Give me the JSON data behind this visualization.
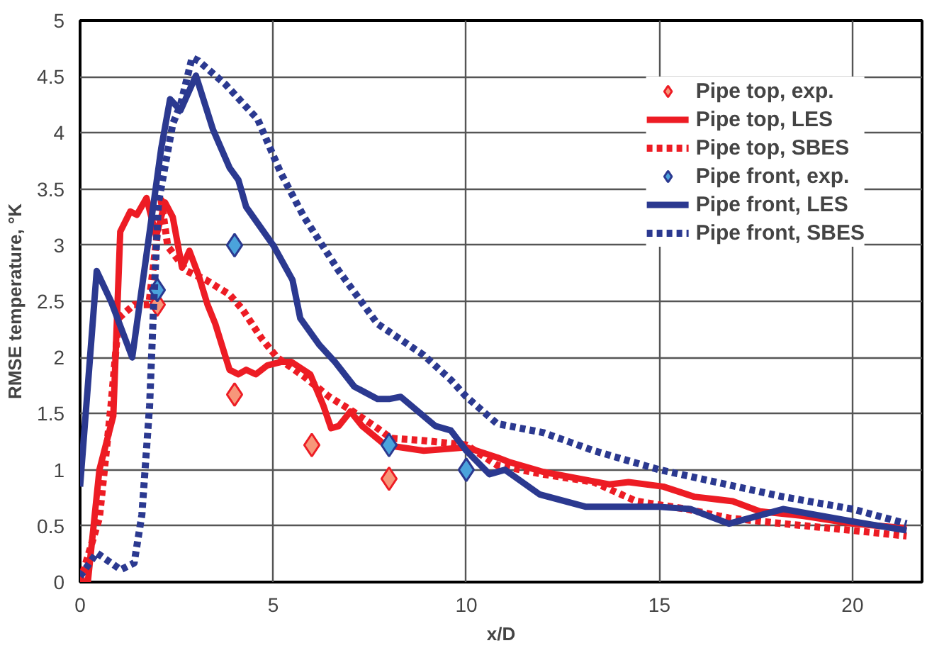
{
  "chart_data": {
    "type": "line",
    "xlabel": "x/D",
    "ylabel": "RMSE temperature, °K",
    "xlim": [
      0,
      21.8
    ],
    "ylim": [
      0,
      5
    ],
    "xticks": [
      0,
      5,
      10,
      15,
      20
    ],
    "yticks": [
      0,
      0.5,
      1,
      1.5,
      2,
      2.5,
      3,
      3.5,
      4,
      4.5,
      5
    ],
    "grid": true,
    "legend": "top right",
    "series": [
      {
        "name": "Pipe top, exp.",
        "type": "scatter",
        "marker": "diamond",
        "color": "#f7977a",
        "x": [
          2,
          4,
          6,
          8
        ],
        "values": [
          2.47,
          1.67,
          1.22,
          0.92
        ]
      },
      {
        "name": "Pipe top, LES",
        "line_style": "solid",
        "color": "#ed1c24",
        "x": [
          0,
          0.2,
          0.5,
          0.86,
          1.04,
          1.3,
          1.47,
          1.72,
          1.97,
          2.2,
          2.4,
          2.64,
          2.83,
          3.07,
          3.3,
          3.5,
          3.87,
          4.1,
          4.3,
          4.55,
          4.85,
          5.2,
          5.47,
          5.96,
          6.3,
          6.5,
          6.7,
          7.0,
          7.3,
          7.9,
          8.9,
          10,
          10.8,
          11.1,
          12,
          13.7,
          14.2,
          15.1,
          15.9,
          16.9,
          17.6,
          18.7,
          20,
          21.4
        ],
        "values": [
          0,
          0,
          1.0,
          1.48,
          3.12,
          3.3,
          3.27,
          3.42,
          3.08,
          3.38,
          3.25,
          2.8,
          2.95,
          2.73,
          2.47,
          2.3,
          1.89,
          1.85,
          1.89,
          1.85,
          1.93,
          1.96,
          1.96,
          1.85,
          1.57,
          1.37,
          1.39,
          1.52,
          1.39,
          1.22,
          1.17,
          1.2,
          1.11,
          1.07,
          0.98,
          0.87,
          0.89,
          0.85,
          0.76,
          0.72,
          0.63,
          0.59,
          0.52,
          0.48
        ]
      },
      {
        "name": "Pipe top, SBES",
        "line_style": "dotted",
        "color": "#ed1c24",
        "x": [
          0,
          0.5,
          0.8,
          1.0,
          1.4,
          1.78,
          2.1,
          2.27,
          2.76,
          3.26,
          3.87,
          4.2,
          4.7,
          5.1,
          5.8,
          6.45,
          7.06,
          7.7,
          8.05,
          8.9,
          10,
          10.8,
          12,
          13.3,
          14.4,
          15.7,
          16.8,
          18.2,
          20,
          21.4
        ],
        "values": [
          0,
          0.57,
          1.57,
          2.35,
          2.47,
          2.47,
          3.4,
          2.99,
          2.77,
          2.69,
          2.56,
          2.43,
          2.17,
          2.0,
          1.83,
          1.65,
          1.52,
          1.37,
          1.28,
          1.26,
          1.22,
          1.04,
          0.96,
          0.89,
          0.72,
          0.65,
          0.57,
          0.52,
          0.46,
          0.41
        ]
      },
      {
        "name": "Pipe front, exp.",
        "type": "scatter",
        "marker": "diamond",
        "color": "#4ba3dc",
        "x": [
          2,
          4,
          8,
          10
        ],
        "values": [
          2.6,
          3.0,
          1.22,
          1.0
        ]
      },
      {
        "name": "Pipe front, LES",
        "line_style": "solid",
        "color": "#2b3990",
        "x": [
          0,
          0.43,
          0.8,
          1.35,
          2.1,
          2.33,
          2.6,
          3.0,
          3.44,
          3.87,
          4.1,
          4.3,
          5.0,
          5.5,
          5.7,
          6.2,
          6.6,
          7.1,
          7.7,
          8.0,
          8.3,
          9.2,
          9.6,
          10,
          10.6,
          11,
          11.9,
          13.1,
          15,
          15.8,
          16.8,
          18.2,
          20,
          21.4
        ],
        "values": [
          0.85,
          2.77,
          2.5,
          2.0,
          3.86,
          4.3,
          4.2,
          4.51,
          4.03,
          3.69,
          3.58,
          3.34,
          3.0,
          2.69,
          2.35,
          2.11,
          1.96,
          1.74,
          1.63,
          1.63,
          1.65,
          1.39,
          1.35,
          1.17,
          0.96,
          1.0,
          0.78,
          0.67,
          0.67,
          0.65,
          0.52,
          0.65,
          0.54,
          0.46
        ]
      },
      {
        "name": "Pipe front, SBES",
        "line_style": "dotted",
        "color": "#2b3990",
        "x": [
          0,
          0.43,
          1.05,
          1.4,
          1.6,
          1.8,
          1.9,
          2.03,
          2.4,
          2.6,
          2.9,
          3.07,
          3.77,
          4.6,
          5.2,
          5.8,
          6.7,
          7.7,
          8.9,
          9.6,
          10,
          10.8,
          12,
          13.3,
          15,
          17,
          18.2,
          20,
          21.4
        ],
        "values": [
          0.05,
          0.26,
          0.11,
          0.17,
          0.6,
          1.57,
          2.43,
          3.38,
          4.08,
          4.25,
          4.67,
          4.64,
          4.43,
          4.12,
          3.64,
          3.25,
          2.77,
          2.3,
          2.02,
          1.8,
          1.65,
          1.41,
          1.33,
          1.17,
          1.0,
          0.85,
          0.76,
          0.65,
          0.52
        ]
      }
    ]
  }
}
